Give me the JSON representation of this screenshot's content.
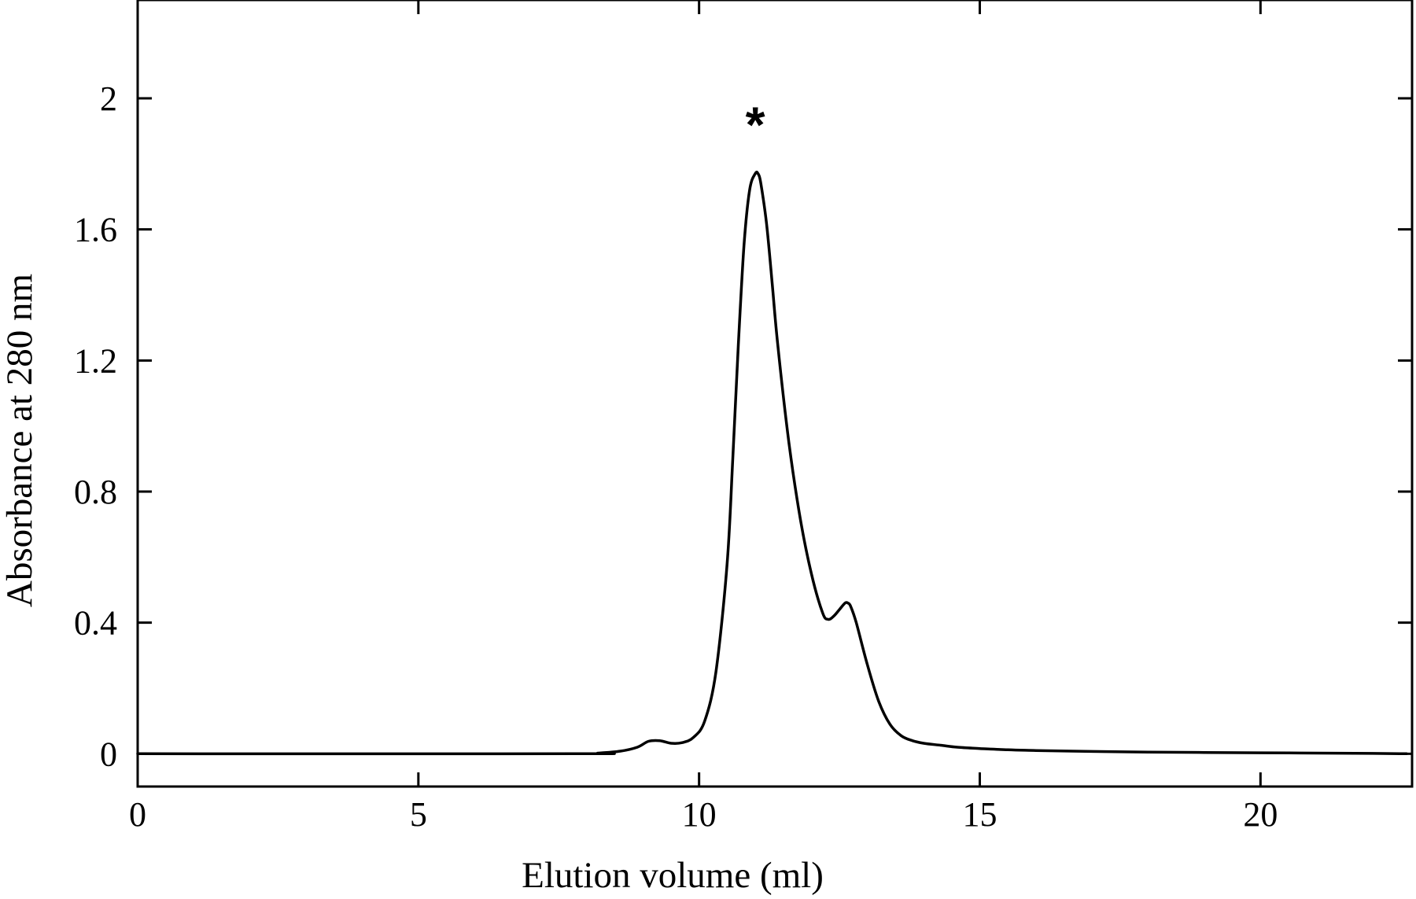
{
  "chart_data": {
    "type": "line",
    "title": "",
    "xlabel": "Elution volume (ml)",
    "ylabel": "Absorbance at 280 nm",
    "xlim": [
      0,
      22.7
    ],
    "ylim": [
      -0.1,
      2.3
    ],
    "xticks": [
      0,
      5,
      10,
      15,
      20
    ],
    "xtick_labels": [
      "0",
      "5",
      "10",
      "15",
      "20"
    ],
    "yticks": [
      0,
      0.4,
      0.8,
      1.2,
      1.6,
      2
    ],
    "ytick_labels": [
      "0",
      "0.4",
      "0.8",
      "1.2",
      "1.6",
      "2"
    ],
    "grid": false,
    "annotations": [
      {
        "text": "*",
        "x": 11.0,
        "y": 1.92
      }
    ],
    "series": [
      {
        "color": "#000000",
        "x": [
          0,
          7.8,
          8.2,
          8.6,
          8.9,
          9.1,
          9.3,
          9.5,
          9.7,
          9.9,
          10.1,
          10.3,
          10.5,
          10.6,
          10.7,
          10.8,
          10.9,
          11.0,
          11.05,
          11.1,
          11.2,
          11.3,
          11.4,
          11.6,
          11.8,
          12.0,
          12.2,
          12.3,
          12.4,
          12.5,
          12.6,
          12.65,
          12.7,
          12.8,
          13.0,
          13.2,
          13.4,
          13.6,
          13.8,
          14.0,
          14.3,
          14.6,
          15.0,
          15.5,
          16,
          17,
          18,
          19,
          20,
          21,
          22,
          22.6
        ],
        "y": [
          0,
          0,
          0.002,
          0.008,
          0.02,
          0.038,
          0.04,
          0.032,
          0.034,
          0.05,
          0.1,
          0.25,
          0.58,
          0.9,
          1.25,
          1.55,
          1.72,
          1.77,
          1.77,
          1.74,
          1.62,
          1.44,
          1.25,
          0.95,
          0.72,
          0.55,
          0.43,
          0.41,
          0.42,
          0.44,
          0.46,
          0.46,
          0.45,
          0.4,
          0.27,
          0.16,
          0.09,
          0.055,
          0.04,
          0.032,
          0.026,
          0.02,
          0.016,
          0.012,
          0.01,
          0.007,
          0.005,
          0.004,
          0.003,
          0.002,
          0.001,
          0
        ]
      }
    ]
  }
}
